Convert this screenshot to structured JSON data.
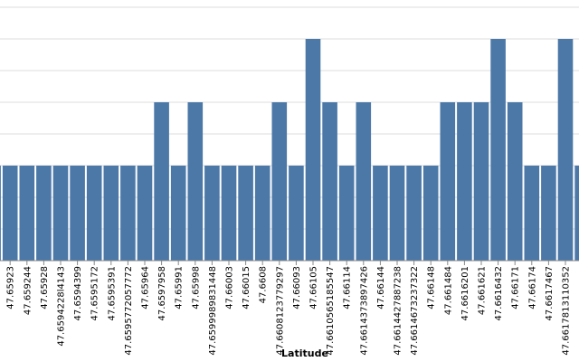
{
  "chart_data": {
    "type": "bar",
    "xlabel": "Latitude",
    "ylabel": "",
    "ylim": [
      0,
      10
    ],
    "bar_color": "#4c78a8",
    "grid": true,
    "categories": [
      "",
      "47.65923",
      "47.659244",
      "47.65928",
      "47.6594228l4143",
      "47.6594399",
      "47.6595172",
      "47.6595391",
      "47.6595772057772",
      "47.65964",
      "47.6597958",
      "47.65991",
      "47.65998",
      "47.6599989831448",
      "47.66003",
      "47.66015",
      "47.6608",
      "47.6608123779297",
      "47.66093",
      "47.66105",
      "47.6610565185547",
      "47.66114",
      "47.6614373897426",
      "47.66144",
      "47.6614427887238",
      "47.6614673237322",
      "47.66148",
      "47.661484",
      "47.6616201",
      "47.661621",
      "47.6616432",
      "47.66171",
      "47.66174",
      "47.6617467",
      "47.6617813110352",
      ""
    ],
    "values": [
      3,
      3,
      3,
      3,
      3,
      3,
      3,
      3,
      3,
      3,
      5,
      3,
      5,
      3,
      3,
      3,
      3,
      5,
      3,
      7,
      5,
      3,
      5,
      3,
      3,
      3,
      3,
      5,
      5,
      5,
      7,
      5,
      3,
      3,
      7,
      3
    ]
  }
}
